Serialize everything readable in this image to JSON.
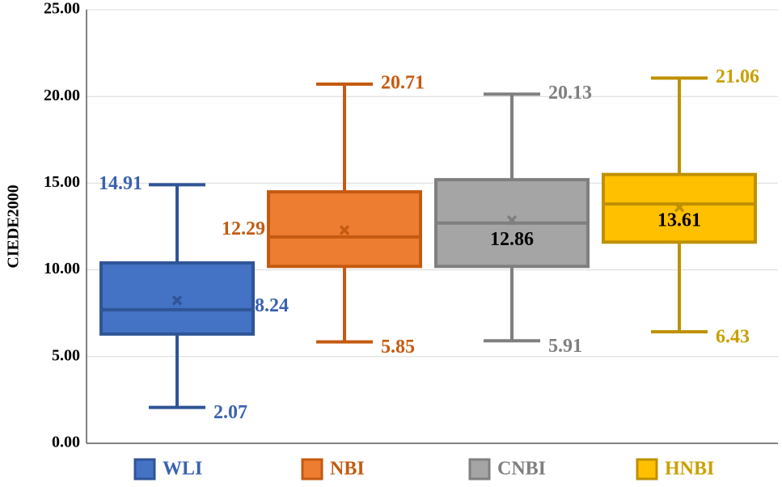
{
  "chart_data": {
    "type": "box",
    "ylabel": "CIEDE2000",
    "ylim": [
      0,
      25
    ],
    "yticks": [
      {
        "value": 0,
        "label": "0.00"
      },
      {
        "value": 5,
        "label": "5.00"
      },
      {
        "value": 10,
        "label": "10.00"
      },
      {
        "value": 15,
        "label": "15.00"
      },
      {
        "value": 20,
        "label": "20.00"
      },
      {
        "value": 25,
        "label": "25.00"
      }
    ],
    "grid": true,
    "legend": "bottom",
    "series": [
      {
        "name": "WLI",
        "color": "#4472c4",
        "edge": "#2f5597",
        "label_color": "#3a62b0",
        "min": 2.07,
        "q1": 6.3,
        "median": 7.7,
        "q3": 10.4,
        "max": 14.91,
        "mean": 8.24
      },
      {
        "name": "NBI",
        "color": "#ed7d31",
        "edge": "#c55a11",
        "label_color": "#c55a11",
        "min": 5.85,
        "q1": 10.2,
        "median": 11.9,
        "q3": 14.5,
        "max": 20.71,
        "mean": 12.29
      },
      {
        "name": "CNBI",
        "color": "#a5a5a5",
        "edge": "#7f7f7f",
        "label_color": "#7f7f7f",
        "min": 5.91,
        "q1": 10.2,
        "median": 12.7,
        "q3": 15.2,
        "max": 20.13,
        "mean": 12.86
      },
      {
        "name": "HNBI",
        "color": "#ffc000",
        "edge": "#bf9000",
        "label_color": "#c9a000",
        "min": 6.43,
        "q1": 11.6,
        "median": 13.8,
        "q3": 15.5,
        "max": 21.06,
        "mean": 13.61
      }
    ]
  }
}
